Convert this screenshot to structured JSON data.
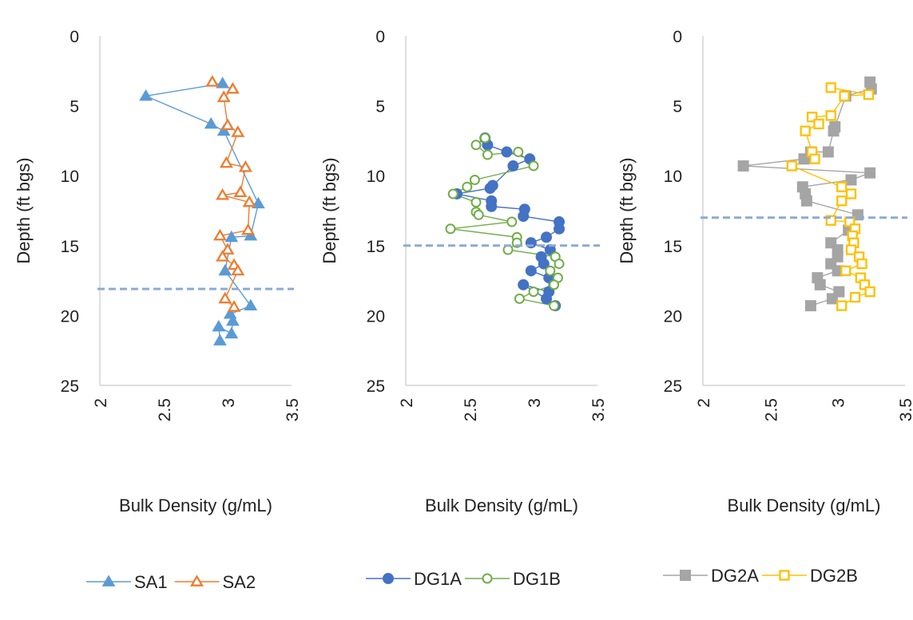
{
  "colors": {
    "SA1": "#5B9BD5",
    "SA2": "#ED7D31",
    "DG1A": "#4472C4",
    "DG1B": "#70AD47",
    "DG2A": "#A5A5A5",
    "DG2B": "#FFC000",
    "water_table": "#8EAAD3",
    "axis": "#bfbfbf",
    "text": "#222222"
  },
  "chart_data": [
    {
      "type": "scatter",
      "panel": "left",
      "xlabel": "Bulk Density (g/mL)",
      "ylabel": "Depth (ft bgs)",
      "xlim": [
        2,
        3.5
      ],
      "ylim": [
        0,
        25
      ],
      "y_inverted": true,
      "x_ticks": [
        "2",
        "2.5",
        "3",
        "3.5"
      ],
      "y_ticks": [
        "0",
        "5",
        "10",
        "15",
        "20",
        "25"
      ],
      "grid": false,
      "legend": "bottom",
      "water_table_depth": 18.1,
      "series": [
        {
          "name": "SA1",
          "marker": "triangle-filled",
          "x": [
            2.96,
            2.36,
            2.87,
            2.97,
            3.24,
            3.18,
            3.03,
            2.98,
            3.18,
            3.02,
            3.04,
            3.03,
            2.93,
            2.94
          ],
          "y": [
            3.4,
            4.3,
            6.3,
            6.8,
            12.0,
            14.3,
            14.4,
            16.8,
            19.3,
            19.9,
            20.4,
            21.3,
            20.8,
            21.8
          ]
        },
        {
          "name": "SA2",
          "marker": "triangle-open",
          "x": [
            2.88,
            3.04,
            2.97,
            3.0,
            3.08,
            2.99,
            3.14,
            3.1,
            2.96,
            3.17,
            3.16,
            2.94,
            3.0,
            2.96,
            3.05,
            3.08,
            2.98,
            3.05
          ],
          "y": [
            3.3,
            3.8,
            4.4,
            6.4,
            6.9,
            9.1,
            9.4,
            11.2,
            11.4,
            11.9,
            13.9,
            14.3,
            15.3,
            15.8,
            16.4,
            16.8,
            18.8,
            19.4
          ]
        }
      ]
    },
    {
      "type": "scatter",
      "panel": "middle",
      "xlabel": "Bulk Density (g/mL)",
      "ylabel": "Depth (ft bgs)",
      "xlim": [
        2,
        3.5
      ],
      "ylim": [
        0,
        25
      ],
      "y_inverted": true,
      "x_ticks": [
        "2",
        "2.5",
        "3",
        "3.5"
      ],
      "y_ticks": [
        "0",
        "5",
        "10",
        "15",
        "20",
        "25"
      ],
      "grid": false,
      "legend": "bottom",
      "water_table_depth": 15.0,
      "series": [
        {
          "name": "DG1A",
          "marker": "circle-filled",
          "x": [
            2.62,
            2.64,
            2.79,
            2.97,
            2.84,
            2.68,
            2.66,
            2.4,
            2.67,
            2.67,
            2.93,
            2.92,
            3.2,
            3.2,
            3.1,
            2.98,
            3.13,
            3.06,
            3.08,
            2.98,
            3.12,
            3.12,
            2.92,
            3.1,
            3.17
          ],
          "y": [
            7.3,
            7.8,
            8.3,
            8.8,
            9.3,
            10.7,
            10.9,
            11.3,
            11.8,
            12.2,
            12.4,
            12.9,
            13.3,
            13.8,
            14.4,
            14.8,
            15.3,
            15.8,
            16.3,
            16.8,
            17.3,
            18.3,
            17.8,
            18.8,
            19.3
          ]
        },
        {
          "name": "DG1B",
          "marker": "circle-open",
          "x": [
            2.62,
            2.55,
            2.64,
            2.88,
            3.0,
            2.54,
            2.48,
            2.37,
            2.55,
            2.55,
            2.57,
            2.83,
            2.35,
            2.87,
            2.87,
            2.8,
            3.17,
            3.2,
            3.13,
            3.19,
            3.16,
            3.0,
            2.89,
            3.16
          ],
          "y": [
            7.3,
            7.8,
            8.5,
            8.3,
            9.3,
            10.3,
            10.8,
            11.3,
            11.9,
            12.6,
            12.8,
            13.3,
            13.8,
            14.4,
            14.8,
            15.3,
            15.8,
            16.3,
            16.8,
            17.3,
            17.8,
            18.3,
            18.8,
            19.3
          ]
        }
      ]
    },
    {
      "type": "scatter",
      "panel": "right",
      "xlabel": "Bulk Density (g/mL)",
      "ylabel": "Depth (ft bgs)",
      "xlim": [
        2,
        3.5
      ],
      "ylim": [
        0,
        25
      ],
      "y_inverted": true,
      "x_ticks": [
        "2",
        "2.5",
        "3",
        "3.5"
      ],
      "y_ticks": [
        "0",
        "5",
        "10",
        "15",
        "20",
        "25"
      ],
      "grid": false,
      "legend": "bottom",
      "water_table_depth": 13.0,
      "series": [
        {
          "name": "DG2A",
          "marker": "square-filled",
          "x": [
            3.24,
            3.25,
            3.06,
            2.98,
            2.97,
            2.93,
            2.8,
            2.75,
            2.3,
            3.24,
            3.1,
            2.74,
            2.76,
            2.77,
            3.15,
            3.08,
            2.95,
            3.0,
            3.0,
            2.95,
            3.0,
            2.85,
            2.87,
            3.01,
            2.96,
            2.8
          ],
          "y": [
            3.3,
            3.8,
            4.3,
            6.5,
            6.8,
            8.3,
            8.3,
            8.8,
            9.3,
            9.8,
            10.3,
            10.8,
            11.3,
            11.8,
            12.8,
            13.9,
            14.8,
            15.3,
            15.8,
            16.3,
            16.8,
            17.3,
            17.8,
            18.3,
            18.8,
            19.3
          ]
        },
        {
          "name": "DG2B",
          "marker": "square-open",
          "x": [
            2.95,
            3.23,
            3.05,
            2.95,
            2.81,
            2.86,
            2.76,
            2.81,
            2.83,
            2.66,
            3.03,
            3.1,
            3.03,
            2.95,
            3.09,
            3.13,
            3.11,
            3.12,
            3.1,
            3.16,
            3.18,
            3.06,
            3.17,
            3.2,
            3.24,
            3.13,
            3.03
          ],
          "y": [
            3.7,
            4.2,
            4.3,
            5.7,
            5.8,
            6.3,
            6.8,
            8.3,
            8.8,
            9.3,
            10.8,
            11.3,
            11.8,
            13.2,
            13.3,
            13.8,
            14.3,
            14.8,
            15.3,
            15.8,
            16.3,
            16.8,
            17.3,
            17.8,
            18.3,
            18.7,
            19.3
          ]
        }
      ]
    }
  ]
}
